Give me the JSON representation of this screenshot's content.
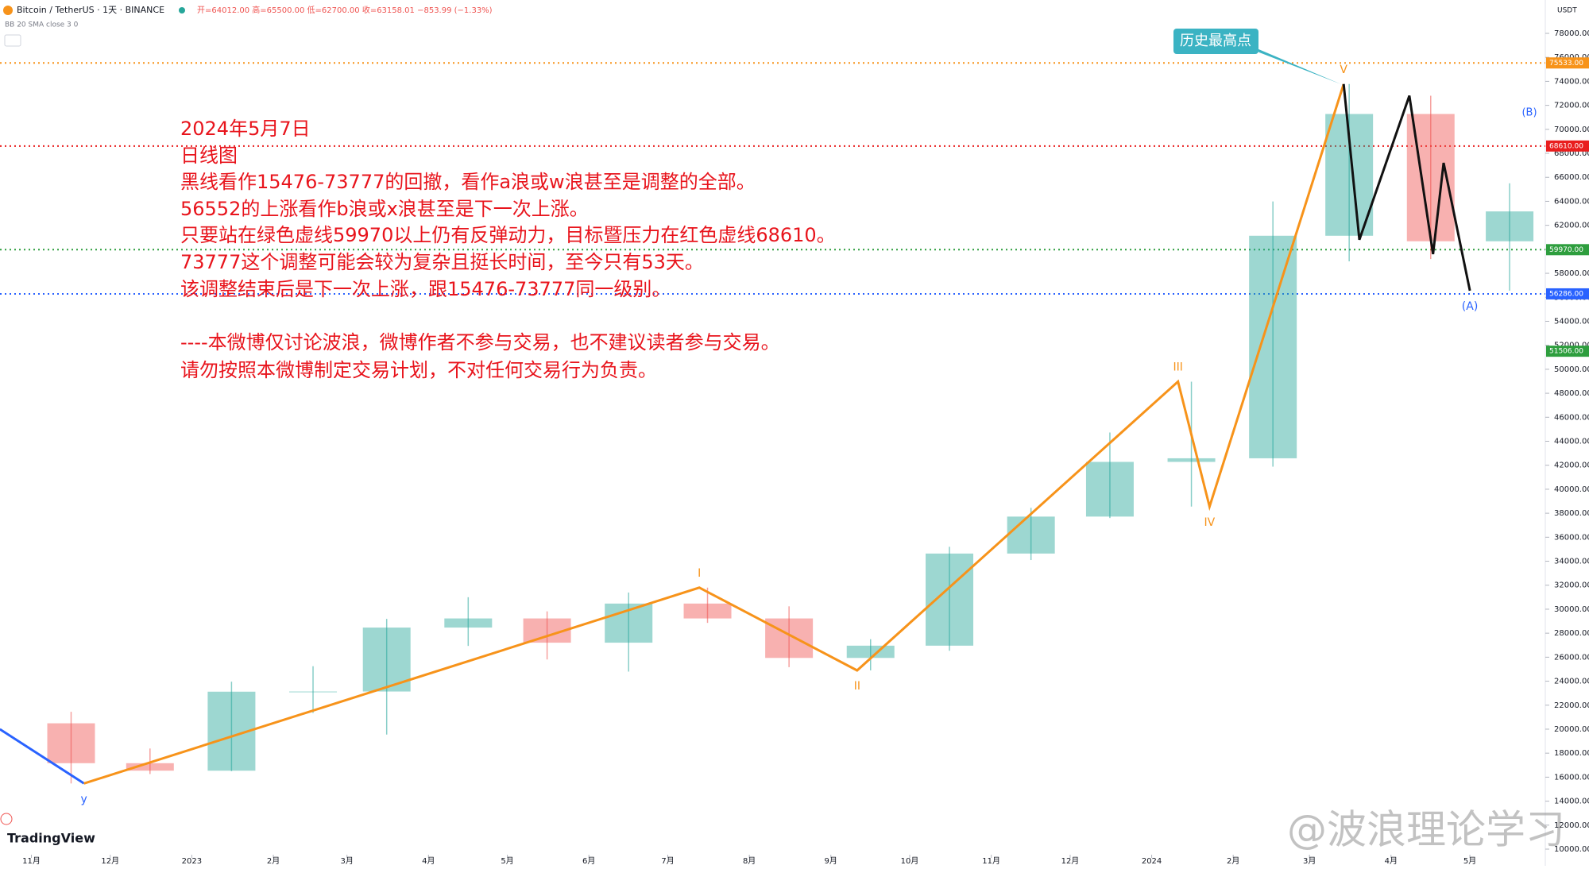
{
  "chart_data": {
    "type": "candlestick",
    "header": {
      "symbol": "Bitcoin / TetherUS · 1天 · BINANCE",
      "ohlc": "开=64012.00 高=65500.00 低=62700.00 收=63158.01 −853.99 (−1.33%)",
      "indicator": "BB 20 SMA close 3 0",
      "currency": "USDT"
    },
    "x": [
      "2022-11",
      "2022-12",
      "2023-01",
      "2023-02",
      "2023-03",
      "2023-04",
      "2023-05",
      "2023-06",
      "2023-07",
      "2023-08",
      "2023-09",
      "2023-10",
      "2023-11",
      "2023-12",
      "2024-01",
      "2024-02",
      "2024-03",
      "2024-04",
      "2024-05"
    ],
    "open": [
      20490,
      17165,
      16540,
      23125,
      23140,
      28470,
      29230,
      27210,
      30470,
      29230,
      25940,
      26960,
      34640,
      37720,
      42280,
      42580,
      61130,
      71280,
      60670
    ],
    "high": [
      21450,
      18390,
      23960,
      25250,
      29190,
      31000,
      29820,
      31390,
      31800,
      30240,
      27500,
      35200,
      38450,
      44730,
      48970,
      63990,
      73777,
      72800,
      65500
    ],
    "low": [
      15476,
      16260,
      16500,
      21350,
      19550,
      26940,
      25810,
      24800,
      28860,
      25170,
      24900,
      26540,
      34100,
      37600,
      38550,
      41880,
      59000,
      59190,
      56552
    ],
    "close": [
      17165,
      16540,
      23125,
      23140,
      28470,
      29230,
      27210,
      30470,
      29230,
      25940,
      26960,
      34640,
      37720,
      42280,
      42580,
      61130,
      71280,
      60670,
      63158
    ],
    "up_color": "#26a69a",
    "down_color": "#ef5350",
    "xticks": [
      {
        "value": "2022-11-01",
        "label": "11月"
      },
      {
        "value": "2022-12-01",
        "label": "12月"
      },
      {
        "value": "2023-01-01",
        "label": "2023"
      },
      {
        "value": "2023-02-01",
        "label": "2月"
      },
      {
        "value": "2023-03-01",
        "label": "3月"
      },
      {
        "value": "2023-04-01",
        "label": "4月"
      },
      {
        "value": "2023-05-01",
        "label": "5月"
      },
      {
        "value": "2023-06-01",
        "label": "6月"
      },
      {
        "value": "2023-07-01",
        "label": "7月"
      },
      {
        "value": "2023-08-01",
        "label": "8月"
      },
      {
        "value": "2023-09-01",
        "label": "9月"
      },
      {
        "value": "2023-10-01",
        "label": "10月"
      },
      {
        "value": "2023-11-01",
        "label": "11月"
      },
      {
        "value": "2023-12-01",
        "label": "12月"
      },
      {
        "value": "2024-01-01",
        "label": "2024"
      },
      {
        "value": "2024-02-01",
        "label": "2月"
      },
      {
        "value": "2024-03-01",
        "label": "3月"
      },
      {
        "value": "2024-04-01",
        "label": "4月"
      },
      {
        "value": "2024-05-01",
        "label": "5月"
      }
    ],
    "ylim": [
      10000,
      78000
    ],
    "yticks": [
      {
        "value": 10000,
        "label": "10000.00"
      },
      {
        "value": 12000,
        "label": "12000.00"
      },
      {
        "value": 14000,
        "label": "14000.00"
      },
      {
        "value": 16000,
        "label": "16000.00"
      },
      {
        "value": 18000,
        "label": "18000.00"
      },
      {
        "value": 20000,
        "label": "20000.00"
      },
      {
        "value": 22000,
        "label": "22000.00"
      },
      {
        "value": 24000,
        "label": "24000.00"
      },
      {
        "value": 26000,
        "label": "26000.00"
      },
      {
        "value": 28000,
        "label": "28000.00"
      },
      {
        "value": 30000,
        "label": "30000.00"
      },
      {
        "value": 32000,
        "label": "32000.00"
      },
      {
        "value": 34000,
        "label": "34000.00"
      },
      {
        "value": 36000,
        "label": "36000.00"
      },
      {
        "value": 38000,
        "label": "38000.00"
      },
      {
        "value": 40000,
        "label": "40000.00"
      },
      {
        "value": 42000,
        "label": "42000.00"
      },
      {
        "value": 44000,
        "label": "44000.00"
      },
      {
        "value": 46000,
        "label": "46000.00"
      },
      {
        "value": 48000,
        "label": "48000.00"
      },
      {
        "value": 50000,
        "label": "50000.00"
      },
      {
        "value": 52000,
        "label": "52000.00"
      },
      {
        "value": 54000,
        "label": "54000.00"
      },
      {
        "value": 56000,
        "label": "56000.00"
      },
      {
        "value": 58000,
        "label": "58000.00"
      },
      {
        "value": 60000,
        "label": "60000.00"
      },
      {
        "value": 62000,
        "label": "62000.00"
      },
      {
        "value": 64000,
        "label": "64000.00"
      },
      {
        "value": 66000,
        "label": "66000.00"
      },
      {
        "value": 68000,
        "label": "68000.00"
      },
      {
        "value": 70000,
        "label": "70000.00"
      },
      {
        "value": 72000,
        "label": "72000.00"
      },
      {
        "value": 74000,
        "label": "74000.00"
      },
      {
        "value": 76000,
        "label": "76000.00"
      },
      {
        "value": 78000,
        "label": "78000.00"
      }
    ],
    "price_lines": [
      {
        "value": 75533,
        "label": "75533.00",
        "color": "#f7931a",
        "line": true
      },
      {
        "value": 68610,
        "label": "68610.00",
        "color": "#e91e1e",
        "line": true
      },
      {
        "value": 59970,
        "label": "59970.00",
        "color": "#2e9e3e",
        "line": true
      },
      {
        "value": 56286,
        "label": "56286.00",
        "color": "#2962ff",
        "line": true
      },
      {
        "value": 51506,
        "label": "51506.00",
        "color": "#2e9e3e",
        "line": false
      }
    ],
    "waves": [
      {
        "color": "#2962ff",
        "x": [
          "2022-10-20",
          "2022-11-21"
        ],
        "values": [
          20000,
          15476
        ],
        "labels": [
          null,
          null
        ]
      },
      {
        "color": "#f7931a",
        "x": [
          "2022-11-21",
          "2023-07-13",
          "2023-09-11",
          "2024-01-11",
          "2024-01-23",
          "2024-03-14"
        ],
        "values": [
          15476,
          31800,
          24900,
          48970,
          38550,
          73777
        ],
        "labels": [
          "y",
          "I",
          "II",
          "III",
          "IV",
          "V"
        ]
      },
      {
        "color": "#111111",
        "x": [
          "2024-03-14",
          "2024-03-20",
          "2024-04-08",
          "2024-04-17",
          "2024-04-21",
          "2024-05-01"
        ],
        "values": [
          73777,
          60800,
          72800,
          59600,
          67200,
          56552
        ],
        "labels": [
          null,
          null,
          null,
          null,
          null,
          "(A)"
        ]
      }
    ],
    "wave_label_colors": {
      "orange": "#f7931a",
      "blue": "#2962ff"
    },
    "annotations": {
      "ath_label": "历史最高点",
      "b_label": "(B)",
      "text": [
        "2024年5月7日",
        "日线图",
        "黑线看作15476-73777的回撤，看作a浪或w浪甚至是调整的全部。",
        "56552的上涨看作b浪或x浪甚至是下一次上涨。",
        "只要站在绿色虚线59970以上仍有反弹动力，目标暨压力在红色虚线68610。",
        "73777这个调整可能会较为复杂且挺长时间，至今只有53天。",
        "该调整结束后是下一次上涨，跟15476-73777同一级别。",
        "----本微博仅讨论波浪，微博作者不参与交易，也不建议读者参与交易。",
        "请勿按照本微博制定交易计划，不对任何交易行为负责。"
      ]
    },
    "logo": "TradingView",
    "watermark": "@波浪理论学习"
  }
}
